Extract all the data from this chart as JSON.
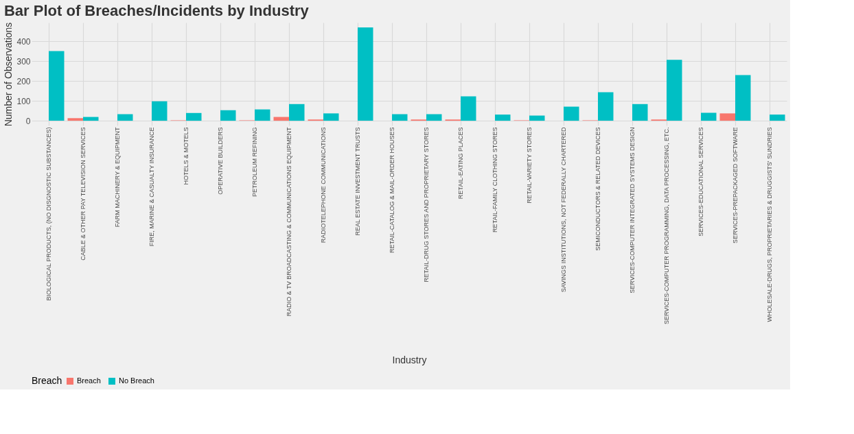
{
  "chart_data": {
    "type": "bar",
    "title": "Bar Plot of Breaches/Incidents by Industry",
    "xlabel": "Industry",
    "ylabel": "Number of Observations",
    "legend_title": "Breach",
    "categories": [
      "BIOLOGICAL PRODUCTS, (NO DISGNOSTIC SUBSTANCES)",
      "CABLE & OTHER PAY TELEVISION SERVICES",
      "FARM MACHINERY & EQUIPMENT",
      "FIRE, MARINE & CASUALTY INSURANCE",
      "HOTELS & MOTELS",
      "OPERATIVE BUILDERS",
      "PETROLEUM REFINING",
      "RADIO & TV BROADCASTING & COMMUNICATIONS EQUIPMENT",
      "RADIOTELEPHONE COMMUNICATIONS",
      "REAL ESTATE INVESTMENT TRUSTS",
      "RETAIL-CATALOG & MAIL-ORDER HOUSES",
      "RETAIL-DRUG STORES AND PROPRIETARY STORES",
      "RETAIL-EATING PLACES",
      "RETAIL-FAMILY CLOTHING STORES",
      "RETAIL-VARIETY STORES",
      "SAVINGS INSTITUTIONS, NOT FEDERALLY CHARTERED",
      "SEMICONDUCTORS & RELATED DEVICES",
      "SERVICES-COMPUTER INTEGRATED SYSTEMS DESIGN",
      "SERVICES-COMPUTER PROGRAMMING, DATA PROCESSING, ETC.",
      "SERVICES-EDUCATIONAL SERVICES",
      "SERVICES-PREPACKAGED SOFTWARE",
      "WHOLESALE-DRUGS, PROPRIETARIES & DRUGGISTS' SUNDRIES"
    ],
    "series": [
      {
        "name": "Breach",
        "color": "#f8766d",
        "values": [
          null,
          13,
          null,
          null,
          2,
          null,
          2,
          19,
          6,
          null,
          null,
          6,
          6,
          null,
          2,
          null,
          2,
          null,
          6,
          null,
          37,
          null
        ]
      },
      {
        "name": "No Breach",
        "color": "#00bfc4",
        "values": [
          351,
          19,
          33,
          98,
          39,
          53,
          57,
          84,
          37,
          471,
          33,
          33,
          123,
          31,
          26,
          71,
          144,
          84,
          307,
          40,
          230,
          31
        ]
      }
    ],
    "ylim": [
      -24,
      495
    ],
    "yticks": [
      0,
      100,
      200,
      300,
      400
    ],
    "grid": true,
    "legend": "bottom"
  }
}
